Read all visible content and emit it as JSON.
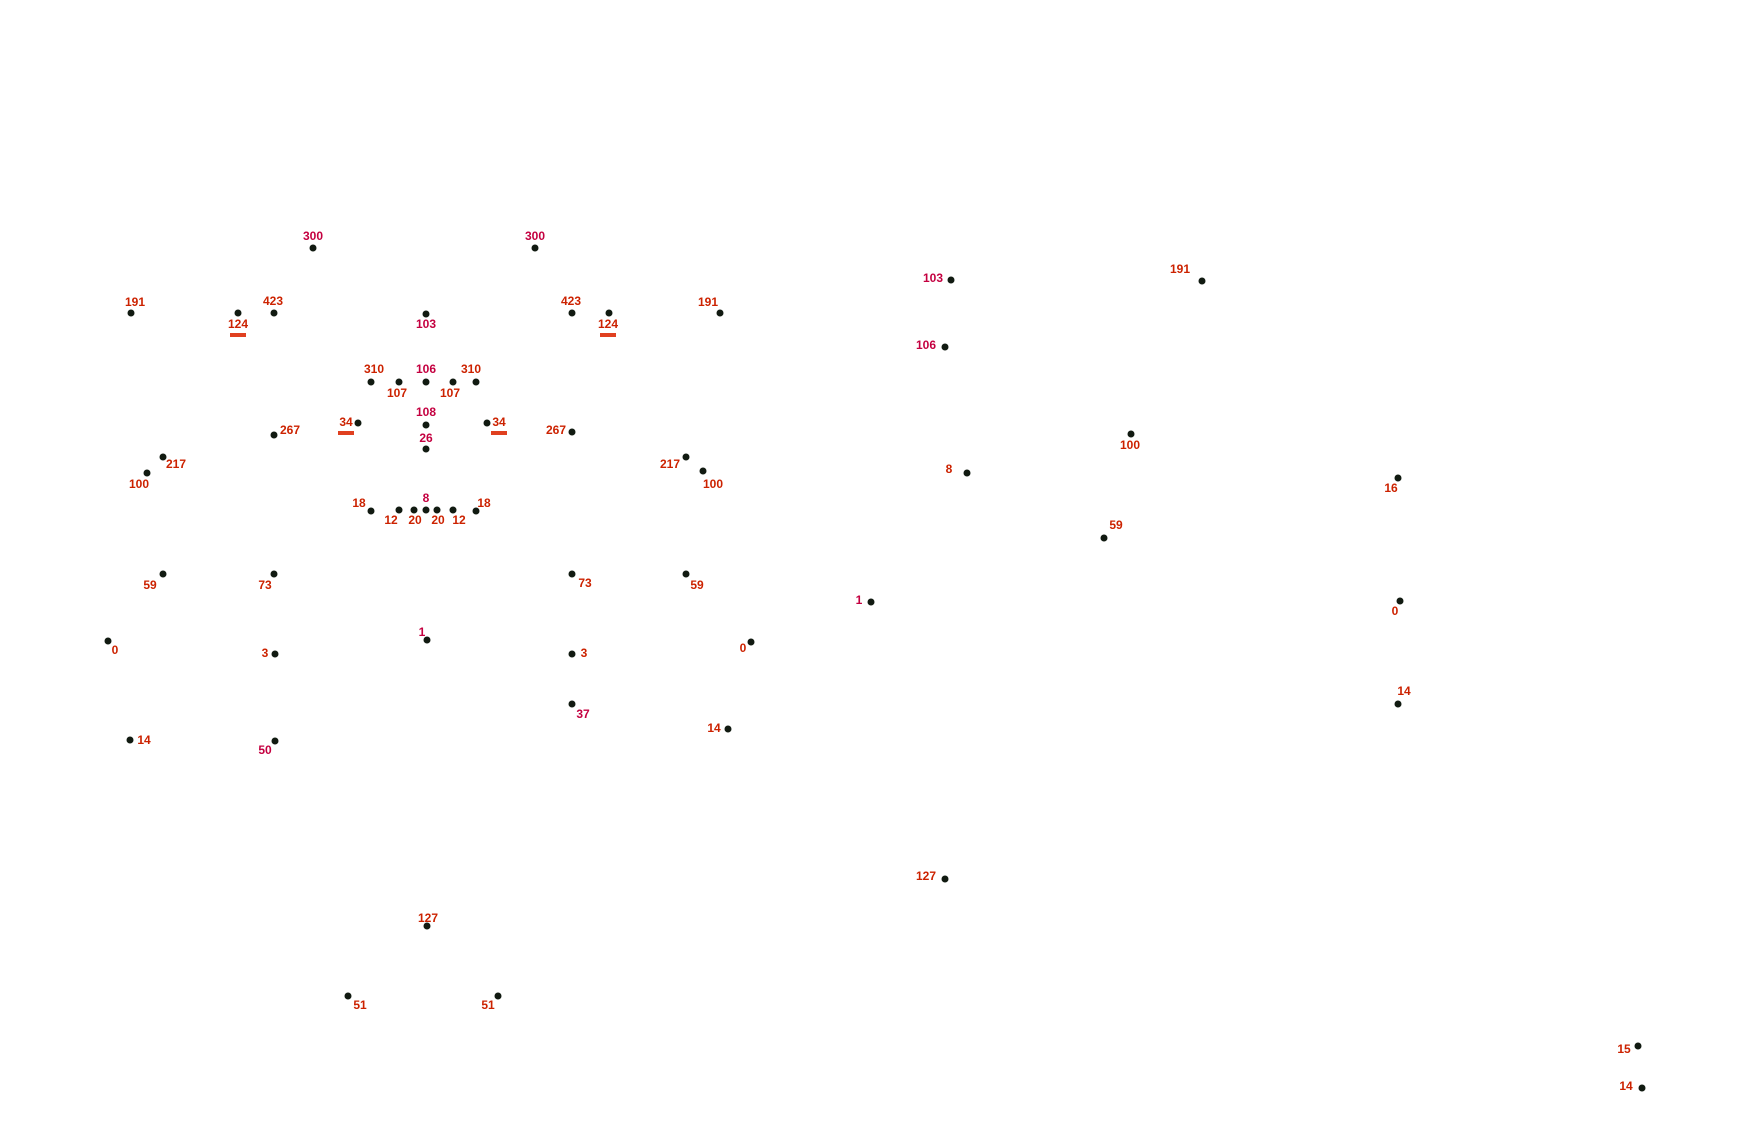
{
  "colors": {
    "background": "#ffffff",
    "dot": "#111a11",
    "label_red": "#cc2200",
    "label_crimson": "#c40040",
    "mark": "#e04020"
  },
  "front_view": {
    "points": [
      {
        "label": "300",
        "tone": "label_crimson"
      },
      {
        "label": "300",
        "tone": "label_crimson"
      },
      {
        "label": "191",
        "tone": "label_red"
      },
      {
        "label": "124",
        "tone": "label_red",
        "underlined": true
      },
      {
        "label": "423",
        "tone": "label_red"
      },
      {
        "label": "103",
        "tone": "label_crimson"
      },
      {
        "label": "423",
        "tone": "label_red"
      },
      {
        "label": "124",
        "tone": "label_red",
        "underlined": true
      },
      {
        "label": "191",
        "tone": "label_red"
      },
      {
        "label": "310",
        "tone": "label_red"
      },
      {
        "label": "106",
        "tone": "label_crimson"
      },
      {
        "label": "310",
        "tone": "label_red"
      },
      {
        "label": "107",
        "tone": "label_red"
      },
      {
        "label": "107",
        "tone": "label_red"
      },
      {
        "label": "108",
        "tone": "label_crimson"
      },
      {
        "label": "34",
        "tone": "label_red",
        "underlined": true
      },
      {
        "label": "34",
        "tone": "label_red",
        "underlined": true
      },
      {
        "label": "26",
        "tone": "label_crimson"
      },
      {
        "label": "267",
        "tone": "label_red"
      },
      {
        "label": "267",
        "tone": "label_red"
      },
      {
        "label": "217",
        "tone": "label_red"
      },
      {
        "label": "100",
        "tone": "label_red"
      },
      {
        "label": "217",
        "tone": "label_red"
      },
      {
        "label": "100",
        "tone": "label_red"
      },
      {
        "label": "8",
        "tone": "label_crimson"
      },
      {
        "label": "18",
        "tone": "label_red"
      },
      {
        "label": "18",
        "tone": "label_red"
      },
      {
        "label": "12",
        "tone": "label_red"
      },
      {
        "label": "20",
        "tone": "label_red"
      },
      {
        "label": "20",
        "tone": "label_red"
      },
      {
        "label": "12",
        "tone": "label_red"
      },
      {
        "label": "59",
        "tone": "label_red"
      },
      {
        "label": "73",
        "tone": "label_red"
      },
      {
        "label": "73",
        "tone": "label_red"
      },
      {
        "label": "59",
        "tone": "label_red"
      },
      {
        "label": "0",
        "tone": "label_red"
      },
      {
        "label": "1",
        "tone": "label_crimson"
      },
      {
        "label": "0",
        "tone": "label_red"
      },
      {
        "label": "3",
        "tone": "label_red"
      },
      {
        "label": "3",
        "tone": "label_red"
      },
      {
        "label": "37",
        "tone": "label_crimson"
      },
      {
        "label": "14",
        "tone": "label_red"
      },
      {
        "label": "50",
        "tone": "label_crimson"
      },
      {
        "label": "14",
        "tone": "label_red"
      },
      {
        "label": "127",
        "tone": "label_red"
      },
      {
        "label": "51",
        "tone": "label_red"
      },
      {
        "label": "51",
        "tone": "label_red"
      }
    ]
  },
  "side_view": {
    "points": [
      {
        "label": "103",
        "tone": "label_crimson"
      },
      {
        "label": "191",
        "tone": "label_red"
      },
      {
        "label": "106",
        "tone": "label_crimson"
      },
      {
        "label": "100",
        "tone": "label_red"
      },
      {
        "label": "8",
        "tone": "label_red"
      },
      {
        "label": "16",
        "tone": "label_red"
      },
      {
        "label": "59",
        "tone": "label_red"
      },
      {
        "label": "1",
        "tone": "label_crimson"
      },
      {
        "label": "0",
        "tone": "label_red"
      },
      {
        "label": "14",
        "tone": "label_red"
      },
      {
        "label": "127",
        "tone": "label_red"
      },
      {
        "label": "15",
        "tone": "label_red"
      },
      {
        "label": "14",
        "tone": "label_red"
      }
    ]
  }
}
